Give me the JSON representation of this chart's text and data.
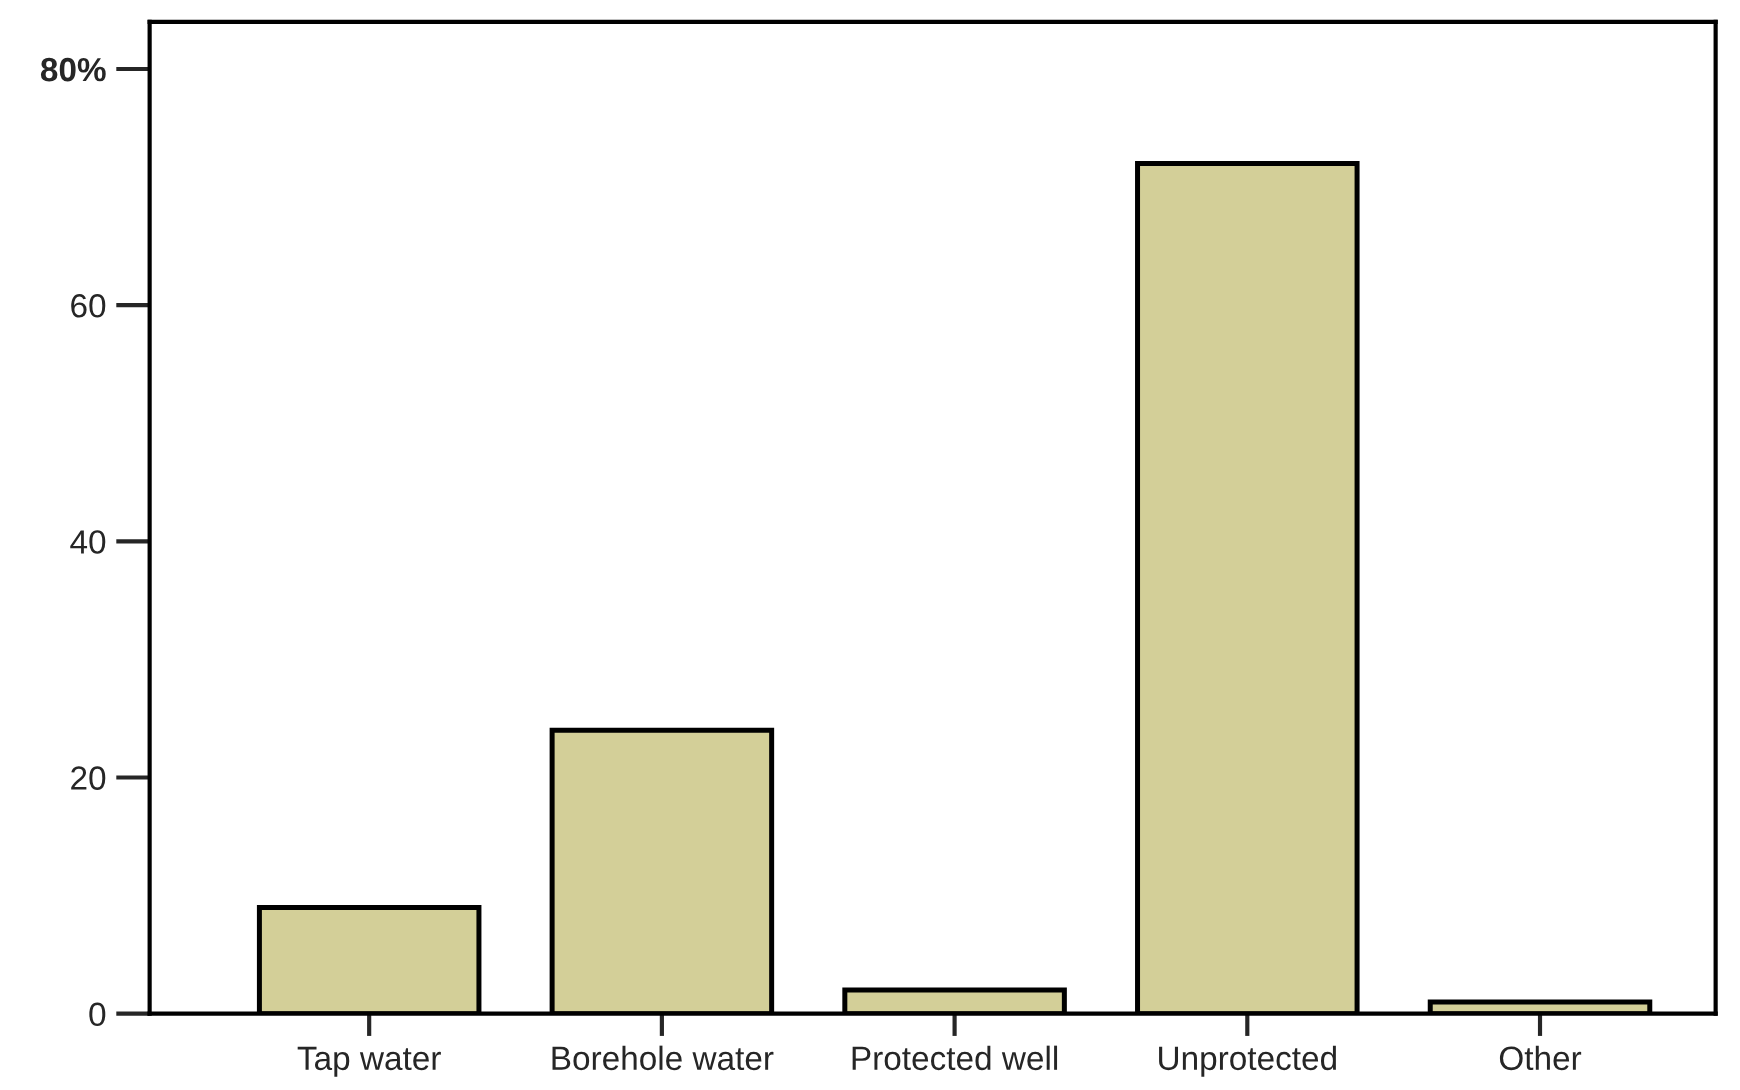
{
  "chart_data": {
    "type": "bar",
    "categories": [
      "Tap water",
      "Borehole water",
      "Protected well",
      "Unprotected",
      "Other"
    ],
    "values": [
      9,
      24,
      2,
      72,
      1
    ],
    "color": "#d3cf98",
    "ylim": [
      0,
      84
    ],
    "yticks": [
      0,
      20,
      40,
      60,
      {
        "value": 80,
        "label": "80%"
      }
    ],
    "grid": false,
    "legend": false
  }
}
